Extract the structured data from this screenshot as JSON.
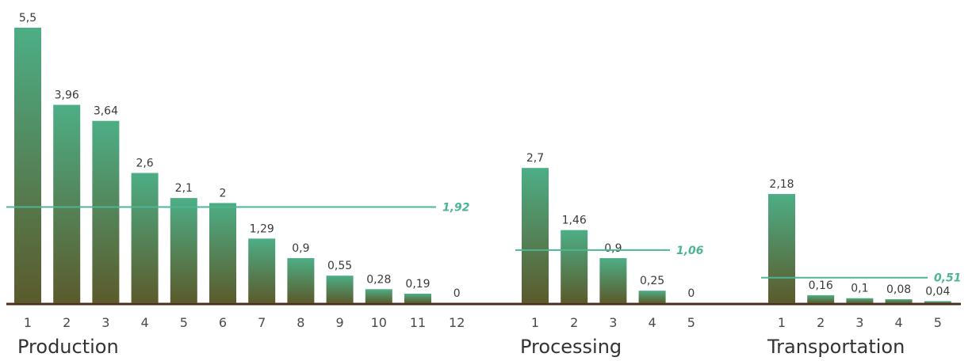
{
  "colors": {
    "bar_top": "#4dae86",
    "bar_bottom": "#5b5a2b",
    "average_line": "#4db596",
    "baseline": "#4a2f1e"
  },
  "chart_data": {
    "type": "bar",
    "grouped_panels": true,
    "ylim": [
      0,
      5.5
    ],
    "groups": [
      {
        "name": "Production",
        "categories": [
          "1",
          "2",
          "3",
          "4",
          "5",
          "6",
          "7",
          "8",
          "9",
          "10",
          "11",
          "12"
        ],
        "values": [
          5.5,
          3.96,
          3.64,
          2.6,
          2.1,
          2,
          1.29,
          0.9,
          0.55,
          0.28,
          0.19,
          0
        ],
        "value_labels": [
          "5,5",
          "3,96",
          "3,64",
          "2,6",
          "2,1",
          "2",
          "1,29",
          "0,9",
          "0,55",
          "0,28",
          "0,19",
          "0"
        ],
        "average": 1.92,
        "average_label": "1,92"
      },
      {
        "name": "Processing",
        "categories": [
          "1",
          "2",
          "3",
          "4",
          "5"
        ],
        "values": [
          2.7,
          1.46,
          0.9,
          0.25,
          0
        ],
        "value_labels": [
          "2,7",
          "1,46",
          "0,9",
          "0,25",
          "0"
        ],
        "average": 1.06,
        "average_label": "1,06"
      },
      {
        "name": "Transportation",
        "categories": [
          "1",
          "2",
          "3",
          "4",
          "5"
        ],
        "values": [
          2.18,
          0.16,
          0.1,
          0.08,
          0.04
        ],
        "value_labels": [
          "2,18",
          "0,16",
          "0,1",
          "0,08",
          "0,04"
        ],
        "average": 0.51,
        "average_label": "0,51"
      }
    ]
  }
}
